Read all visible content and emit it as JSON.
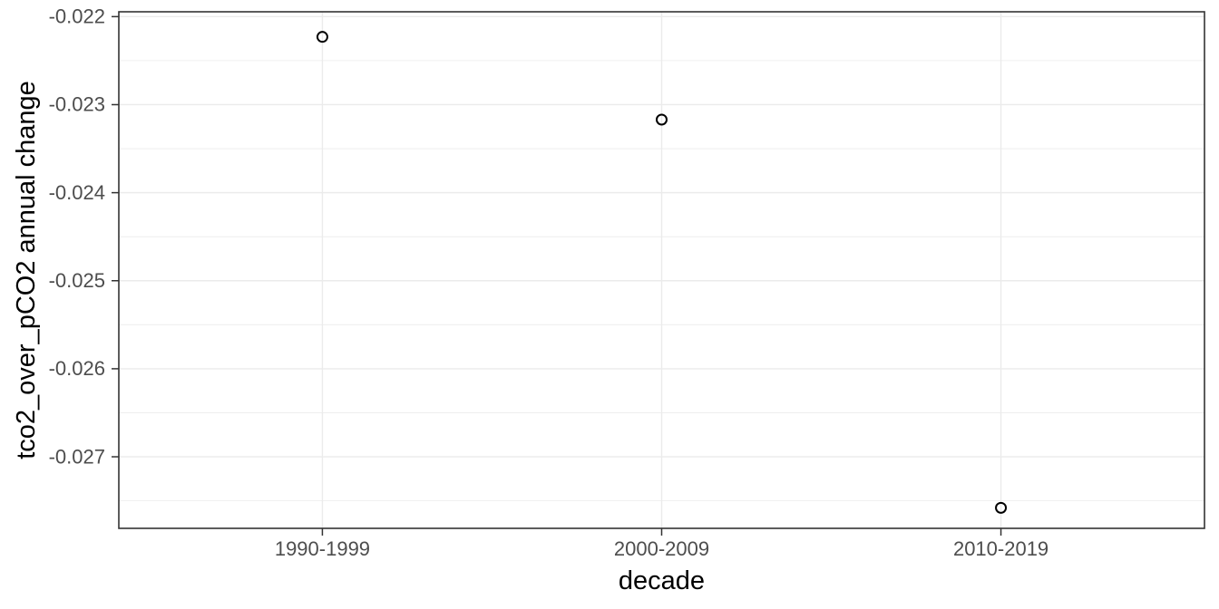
{
  "chart_data": {
    "type": "scatter",
    "xlabel": "decade",
    "ylabel": "tco2_over_pCO2 annual change",
    "categories": [
      "1990-1999",
      "2000-2009",
      "2010-2019"
    ],
    "values": [
      -0.02223,
      -0.02317,
      -0.02758
    ],
    "ylim": [
      -0.027813,
      -0.021945
    ],
    "yticks": {
      "values": [
        -0.022,
        -0.023,
        -0.024,
        -0.025,
        -0.026,
        -0.027
      ],
      "labels": [
        "-0.022",
        "-0.023",
        "-0.024",
        "-0.025",
        "-0.026",
        "-0.027"
      ]
    },
    "yminor": [
      -0.0225,
      -0.0235,
      -0.0245,
      -0.0255,
      -0.0265,
      -0.0275
    ],
    "grid": true,
    "legend_position": "none",
    "point_style": {
      "shape": "open-circle",
      "radius": 5.5,
      "stroke_width": 2
    },
    "colors": {
      "background": "#ffffff",
      "panel_background": "#ffffff",
      "grid_major": "#ebebeb",
      "grid_minor": "#ebebeb",
      "panel_border": "#333333",
      "tick_mark": "#333333",
      "tick_label": "#4d4d4d",
      "axis_title": "#000000",
      "point": "#000000"
    }
  }
}
